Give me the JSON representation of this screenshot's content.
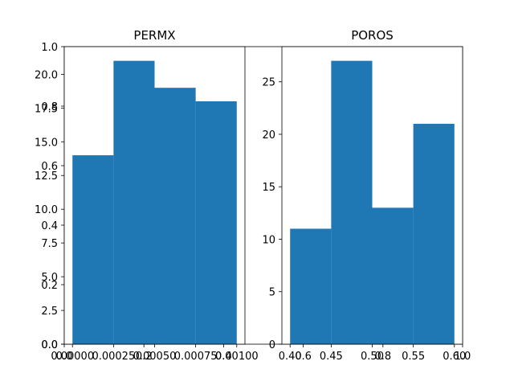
{
  "background_color": "#ffffff",
  "bar_color": "#1f77b4",
  "chart_data": [
    {
      "type": "bar",
      "title": "",
      "xlim": [
        0,
        1
      ],
      "ylim": [
        0,
        1
      ],
      "x_ticks": [
        "0.0",
        "0.2",
        "0.4",
        "0.6",
        "0.8",
        "1.0"
      ],
      "y_ticks": [
        "0.0",
        "0.2",
        "0.4",
        "0.6",
        "0.8",
        "1.0"
      ],
      "bins": [],
      "grid": false
    },
    {
      "type": "histogram",
      "title": "PERMX",
      "xlim": [
        -5e-05,
        0.00105
      ],
      "ylim": [
        0,
        22.05
      ],
      "x_ticks": [
        "0.00000",
        "0.00025",
        "0.00050",
        "0.00075",
        "0.00100"
      ],
      "x_tick_values": [
        0,
        0.00025,
        0.0005,
        0.00075,
        0.001
      ],
      "y_ticks": [
        "0.0",
        "2.5",
        "5.0",
        "7.5",
        "10.0",
        "12.5",
        "15.0",
        "17.5",
        "20.0"
      ],
      "y_tick_values": [
        0,
        2.5,
        5,
        7.5,
        10,
        12.5,
        15,
        17.5,
        20
      ],
      "bins": [
        {
          "start": 0.0,
          "end": 0.00025,
          "count": 14
        },
        {
          "start": 0.00025,
          "end": 0.0005,
          "count": 21
        },
        {
          "start": 0.0005,
          "end": 0.00075,
          "count": 19
        },
        {
          "start": 0.00075,
          "end": 0.001,
          "count": 18
        }
      ],
      "grid": false
    },
    {
      "type": "histogram",
      "title": "POROS",
      "xlim": [
        0.39,
        0.61
      ],
      "ylim": [
        0,
        28.35
      ],
      "x_ticks": [
        "0.40",
        "0.45",
        "0.50",
        "0.55",
        "0.60"
      ],
      "x_tick_values": [
        0.4,
        0.45,
        0.5,
        0.55,
        0.6
      ],
      "y_ticks": [
        "0",
        "5",
        "10",
        "15",
        "20",
        "25"
      ],
      "y_tick_values": [
        0,
        5,
        10,
        15,
        20,
        25
      ],
      "bins": [
        {
          "start": 0.4,
          "end": 0.45,
          "count": 11
        },
        {
          "start": 0.45,
          "end": 0.5,
          "count": 27
        },
        {
          "start": 0.5,
          "end": 0.55,
          "count": 13
        },
        {
          "start": 0.55,
          "end": 0.6,
          "count": 21
        }
      ],
      "grid": false
    }
  ]
}
